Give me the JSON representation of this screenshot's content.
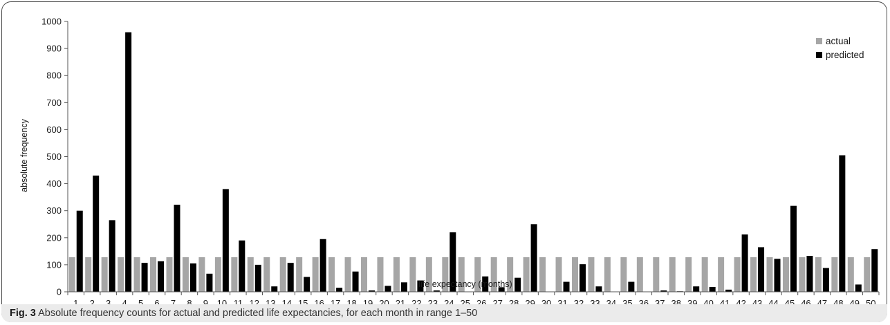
{
  "chart_data": {
    "type": "bar",
    "xlabel": "life expectancy (months)",
    "ylabel": "absolute frequency",
    "ylim": [
      0,
      1000
    ],
    "yticks": [
      0,
      100,
      200,
      300,
      400,
      500,
      600,
      700,
      800,
      900,
      1000
    ],
    "grid": false,
    "legend_position": "top-right",
    "categories": [
      "1",
      "2",
      "3",
      "4",
      "5",
      "6",
      "7",
      "8",
      "9",
      "10",
      "11",
      "12",
      "13",
      "14",
      "15",
      "16",
      "17",
      "18",
      "19",
      "20",
      "21",
      "22",
      "23",
      "24",
      "25",
      "26",
      "27",
      "28",
      "29",
      "30",
      "31",
      "32",
      "33",
      "34",
      "35",
      "36",
      "37",
      "38",
      "39",
      "40",
      "41",
      "42",
      "43",
      "44",
      "45",
      "46",
      "47",
      "48",
      "49",
      "50"
    ],
    "series": [
      {
        "name": "actual",
        "color": "#a6a6a6",
        "values": [
          128,
          128,
          128,
          128,
          128,
          128,
          128,
          128,
          128,
          128,
          128,
          128,
          128,
          128,
          128,
          128,
          128,
          128,
          128,
          128,
          128,
          128,
          128,
          128,
          128,
          128,
          128,
          128,
          128,
          128,
          128,
          128,
          128,
          128,
          128,
          128,
          128,
          128,
          128,
          128,
          128,
          128,
          128,
          128,
          128,
          128,
          128,
          128,
          128,
          128
        ]
      },
      {
        "name": "predicted",
        "color": "#000000",
        "values": [
          300,
          430,
          265,
          960,
          107,
          113,
          322,
          105,
          67,
          380,
          190,
          100,
          20,
          107,
          55,
          195,
          15,
          75,
          5,
          22,
          35,
          42,
          5,
          220,
          0,
          57,
          17,
          52,
          250,
          0,
          37,
          102,
          20,
          0,
          37,
          0,
          5,
          2,
          20,
          18,
          8,
          212,
          165,
          122,
          318,
          133,
          88,
          505,
          27,
          158
        ]
      }
    ]
  },
  "caption": {
    "label": "Fig. 3",
    "text": "Absolute frequency counts for actual and predicted life expectancies, for each month in range 1–50"
  }
}
